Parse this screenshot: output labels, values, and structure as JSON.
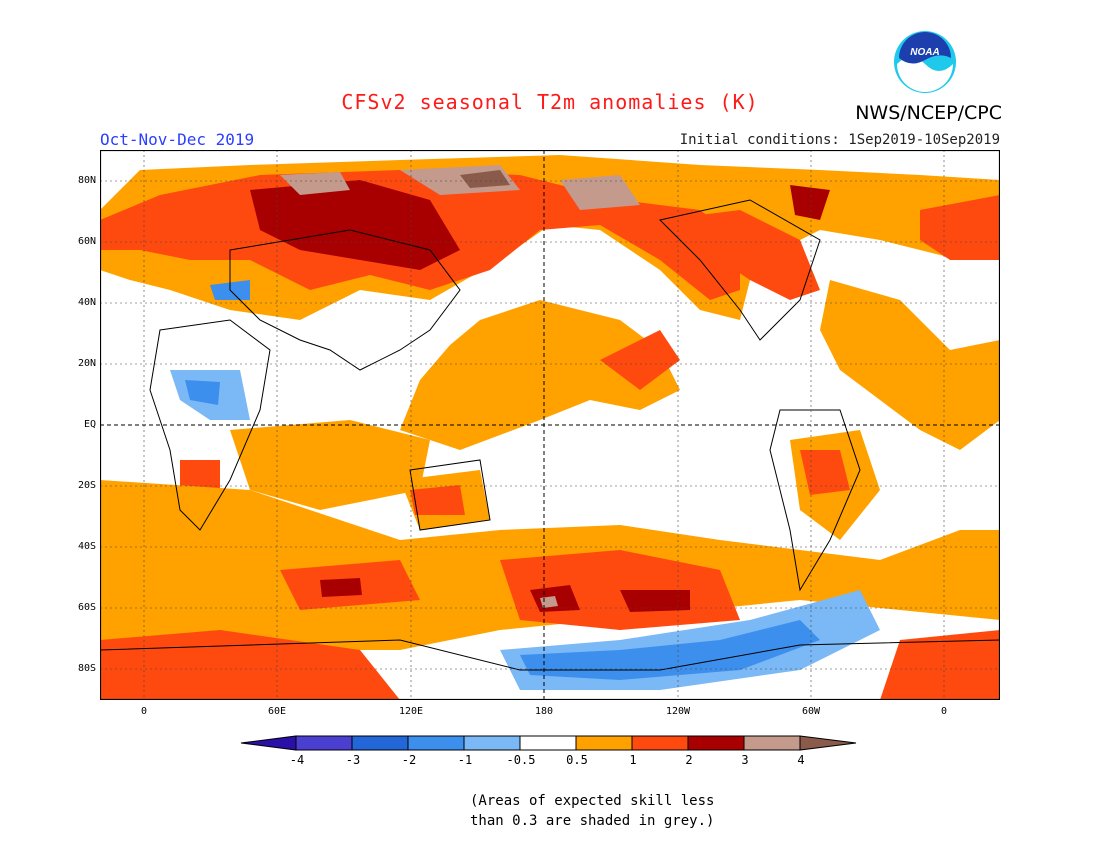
{
  "header": {
    "title": "CFSv2 seasonal T2m anomalies (K)",
    "agency": "NWS/NCEP/CPC",
    "logo_text": "NOAA",
    "season": "Oct-Nov-Dec 2019",
    "initial_conditions": "Initial conditions: 1Sep2019-10Sep2019"
  },
  "axes": {
    "lat_labels": [
      "80N",
      "60N",
      "40N",
      "20N",
      "EQ",
      "20S",
      "40S",
      "60S",
      "80S"
    ],
    "lon_labels": [
      "0",
      "60E",
      "120E",
      "180",
      "120W",
      "60W",
      "0"
    ]
  },
  "colorbar": {
    "labels": [
      "-4",
      "-3",
      "-2",
      "-1",
      "-0.5",
      "0.5",
      "1",
      "2",
      "3",
      "4"
    ],
    "colors": [
      "#2a0fa8",
      "#4a3fd0",
      "#2266d8",
      "#3d8fee",
      "#7ab8f6",
      "#ffffff",
      "#ffa200",
      "#ff4a0f",
      "#a80000",
      "#c49a8c",
      "#8a5a4a"
    ]
  },
  "note": {
    "line1": "(Areas of expected skill less",
    "line2": "than 0.3 are shaded in grey.)"
  }
}
